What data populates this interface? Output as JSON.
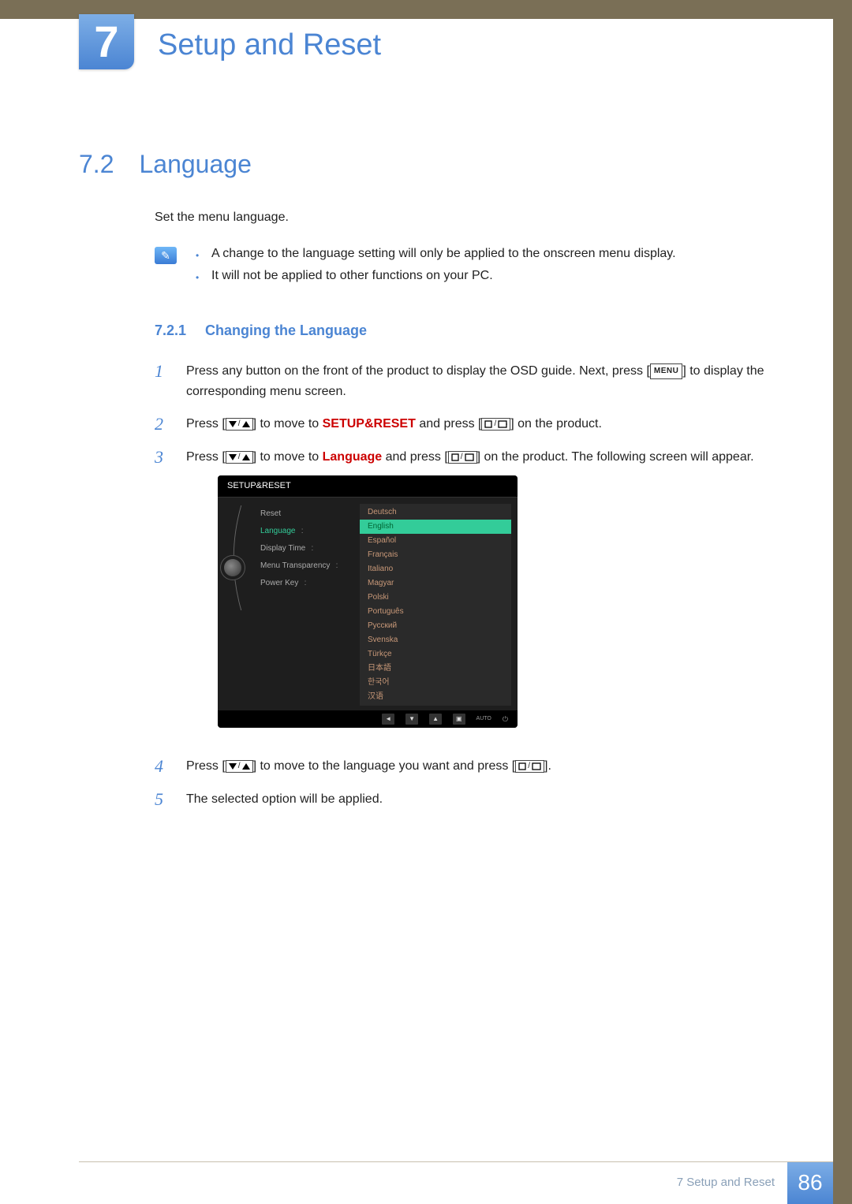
{
  "chapter": {
    "number": "7",
    "title": "Setup and Reset"
  },
  "section": {
    "number": "7.2",
    "title": "Language"
  },
  "intro": "Set the menu language.",
  "notes": [
    "A change to the language setting will only be applied to the onscreen menu display.",
    "It will not be applied to other functions on your PC."
  ],
  "subsection": {
    "number": "7.2.1",
    "title": "Changing the Language"
  },
  "steps": {
    "s1a": "Press any button on the front of the product to display the OSD guide. Next, press [",
    "s1b": "] to display the corresponding menu screen.",
    "s2a": "Press [",
    "s2b": "] to move to ",
    "s2red": "SETUP&RESET",
    "s2c": " and press [",
    "s2d": "] on the product.",
    "s3a": "Press [",
    "s3b": "] to move to ",
    "s3red": "Language",
    "s3c": " and press [",
    "s3d": "] on the product. The following screen will appear.",
    "s4a": "Press [",
    "s4b": "] to move to the language you want and press [",
    "s4c": "].",
    "s5": "The selected option will be applied."
  },
  "menu_button": "MENU",
  "osd": {
    "title": "SETUP&RESET",
    "left_items": [
      "Reset",
      "Language",
      "Display Time",
      "Menu Transparency",
      "Power Key"
    ],
    "left_active": "Language",
    "right_items": [
      "Deutsch",
      "English",
      "Español",
      "Français",
      "Italiano",
      "Magyar",
      "Polski",
      "Português",
      "Русский",
      "Svenska",
      "Türkçe",
      "日本語",
      "한국어",
      "汉语"
    ],
    "right_selected": "English",
    "toolbar_auto": "AUTO"
  },
  "footer": {
    "label": "7 Setup and Reset",
    "page": "86"
  }
}
